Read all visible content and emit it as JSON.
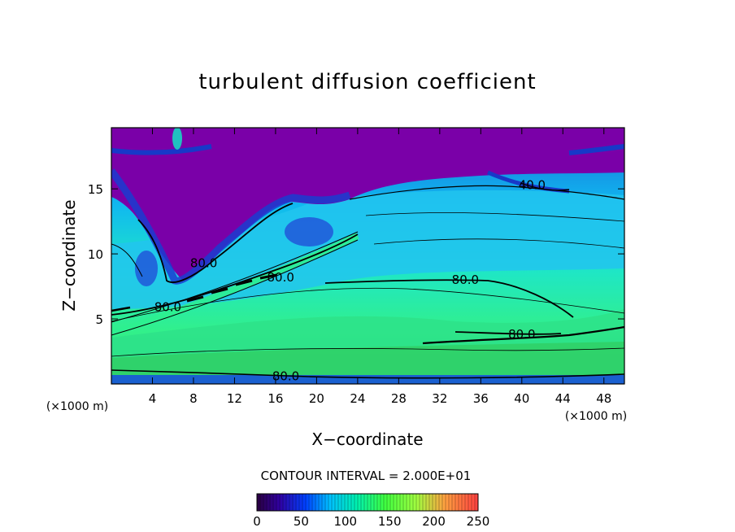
{
  "chart_data": {
    "type": "heatmap",
    "title": "turbulent diffusion coefficient",
    "xlabel": "X−coordinate",
    "ylabel": "Z−coordinate",
    "x_unit_left": "(×1000 m)",
    "x_unit_right": "(×1000 m)",
    "xlim": [
      0,
      50
    ],
    "ylim": [
      0,
      19.7
    ],
    "xticks": [
      4,
      8,
      12,
      16,
      20,
      24,
      28,
      32,
      36,
      40,
      44,
      48
    ],
    "yticks": [
      5,
      10,
      15
    ],
    "contour_interval_text": "CONTOUR INTERVAL = 2.000E+01",
    "colorbar": {
      "min": 0,
      "max": 250,
      "ticks": [
        0,
        50,
        100,
        150,
        200,
        250
      ]
    },
    "contour_labels": [
      {
        "text": "40.0",
        "x": 41.0,
        "z": 15.3
      },
      {
        "text": "80.0",
        "x": 9.0,
        "z": 9.3
      },
      {
        "text": "80.0",
        "x": 16.5,
        "z": 8.2
      },
      {
        "text": "80.0",
        "x": 34.5,
        "z": 8.0
      },
      {
        "text": "80.0",
        "x": 5.5,
        "z": 5.9
      },
      {
        "text": "80.0",
        "x": 40.0,
        "z": 3.8
      },
      {
        "text": "80.0",
        "x": 17.0,
        "z": 0.6
      }
    ]
  }
}
